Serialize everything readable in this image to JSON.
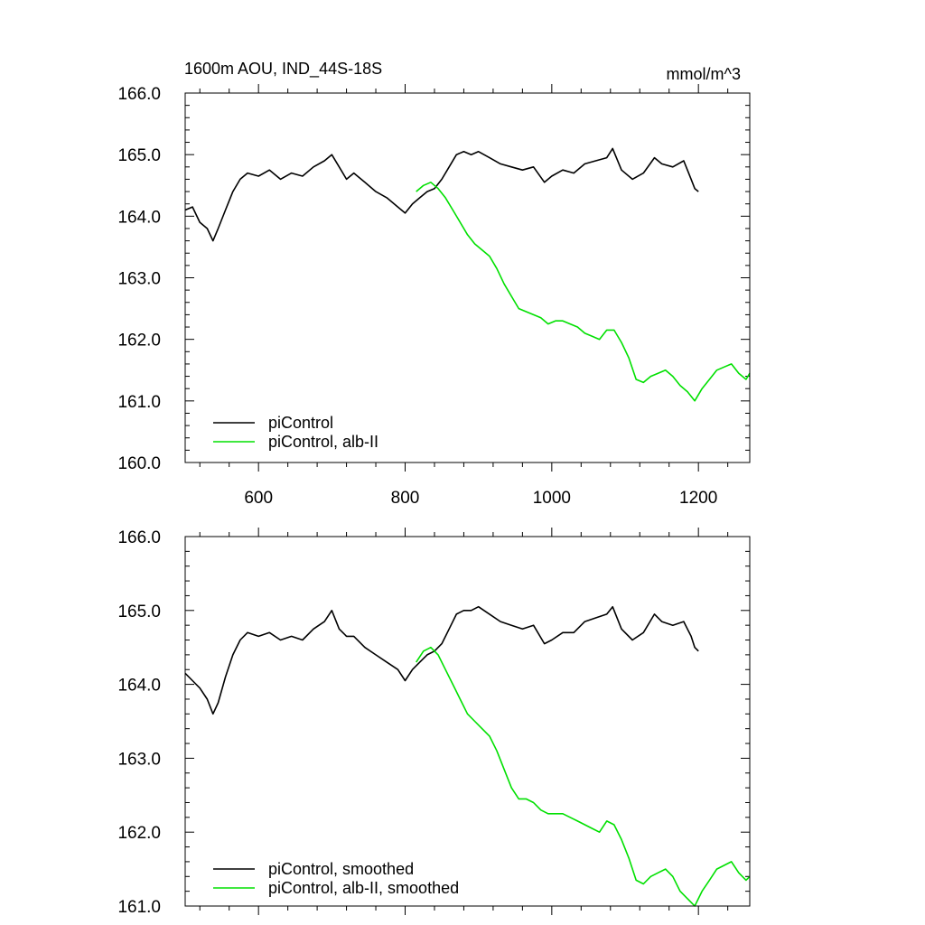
{
  "chart_data": [
    {
      "type": "line",
      "title": "1600m AOU, IND_44S-18S",
      "units": "mmol/m^3",
      "xlim": [
        500,
        1270
      ],
      "ylim": [
        160.0,
        166.0
      ],
      "x_ticks": [
        600,
        800,
        1000,
        1200
      ],
      "x_tick_labels": [
        "600",
        "800",
        "1000",
        "1200"
      ],
      "y_ticks": [
        160.0,
        161.0,
        162.0,
        163.0,
        164.0,
        165.0,
        166.0
      ],
      "y_tick_labels": [
        "160.0",
        "161.0",
        "162.0",
        "163.0",
        "164.0",
        "165.0",
        "166.0"
      ],
      "grid": false,
      "legend_position": "bottom-left",
      "series": [
        {
          "name": "piControl",
          "color": "#000000",
          "x": [
            500,
            510,
            520,
            530,
            538,
            545,
            555,
            565,
            575,
            585,
            600,
            615,
            630,
            645,
            660,
            675,
            690,
            700,
            710,
            720,
            730,
            745,
            760,
            775,
            790,
            800,
            810,
            820,
            830,
            840,
            850,
            860,
            870,
            880,
            890,
            900,
            915,
            930,
            945,
            960,
            975,
            990,
            1000,
            1015,
            1030,
            1045,
            1060,
            1075,
            1083,
            1095,
            1110,
            1125,
            1140,
            1150,
            1165,
            1180,
            1190,
            1195,
            1200
          ],
          "y": [
            164.1,
            164.15,
            163.9,
            163.8,
            163.6,
            163.8,
            164.1,
            164.4,
            164.6,
            164.7,
            164.65,
            164.75,
            164.6,
            164.7,
            164.65,
            164.8,
            164.9,
            165.0,
            164.8,
            164.6,
            164.7,
            164.55,
            164.4,
            164.3,
            164.15,
            164.05,
            164.2,
            164.3,
            164.4,
            164.45,
            164.6,
            164.8,
            165.0,
            165.05,
            165.0,
            165.05,
            164.95,
            164.85,
            164.8,
            164.75,
            164.8,
            164.55,
            164.65,
            164.75,
            164.7,
            164.85,
            164.9,
            164.95,
            165.1,
            164.75,
            164.6,
            164.7,
            164.95,
            164.85,
            164.8,
            164.9,
            164.6,
            164.45,
            164.4
          ]
        },
        {
          "name": "piControl, alb-II",
          "color": "#00e000",
          "x": [
            815,
            825,
            835,
            845,
            855,
            865,
            875,
            885,
            895,
            905,
            915,
            925,
            935,
            945,
            955,
            965,
            975,
            985,
            995,
            1005,
            1015,
            1025,
            1035,
            1045,
            1055,
            1065,
            1075,
            1085,
            1095,
            1105,
            1115,
            1125,
            1135,
            1145,
            1155,
            1165,
            1175,
            1185,
            1195,
            1205,
            1215,
            1225,
            1235,
            1245,
            1255,
            1265,
            1270
          ],
          "y": [
            164.4,
            164.5,
            164.55,
            164.45,
            164.3,
            164.1,
            163.9,
            163.7,
            163.55,
            163.45,
            163.35,
            163.15,
            162.9,
            162.7,
            162.5,
            162.45,
            162.4,
            162.35,
            162.25,
            162.3,
            162.3,
            162.25,
            162.2,
            162.1,
            162.05,
            162.0,
            162.15,
            162.15,
            161.95,
            161.7,
            161.35,
            161.3,
            161.4,
            161.45,
            161.5,
            161.4,
            161.25,
            161.15,
            161.0,
            161.2,
            161.35,
            161.5,
            161.55,
            161.6,
            161.45,
            161.35,
            161.45
          ]
        }
      ]
    },
    {
      "type": "line",
      "xlim": [
        500,
        1270
      ],
      "ylim": [
        161.0,
        166.0
      ],
      "x_ticks": [
        600,
        800,
        1000,
        1200
      ],
      "y_ticks": [
        161.0,
        162.0,
        163.0,
        164.0,
        165.0,
        166.0
      ],
      "y_tick_labels": [
        "161.0",
        "162.0",
        "163.0",
        "164.0",
        "165.0",
        "166.0"
      ],
      "grid": false,
      "legend_position": "bottom-left",
      "series": [
        {
          "name": "piControl, smoothed",
          "color": "#000000",
          "x": [
            500,
            510,
            520,
            530,
            538,
            545,
            555,
            565,
            575,
            585,
            600,
            615,
            630,
            645,
            660,
            675,
            690,
            700,
            710,
            720,
            730,
            745,
            760,
            775,
            790,
            800,
            810,
            820,
            830,
            840,
            850,
            860,
            870,
            880,
            890,
            900,
            915,
            930,
            945,
            960,
            975,
            990,
            1000,
            1015,
            1030,
            1045,
            1060,
            1075,
            1083,
            1095,
            1110,
            1125,
            1140,
            1150,
            1165,
            1180,
            1190,
            1195,
            1200
          ],
          "y": [
            164.15,
            164.05,
            163.95,
            163.8,
            163.6,
            163.75,
            164.1,
            164.4,
            164.6,
            164.7,
            164.65,
            164.7,
            164.6,
            164.65,
            164.6,
            164.75,
            164.85,
            165.0,
            164.75,
            164.65,
            164.65,
            164.5,
            164.4,
            164.3,
            164.2,
            164.05,
            164.2,
            164.3,
            164.4,
            164.45,
            164.55,
            164.75,
            164.95,
            165.0,
            165.0,
            165.05,
            164.95,
            164.85,
            164.8,
            164.75,
            164.8,
            164.55,
            164.6,
            164.7,
            164.7,
            164.85,
            164.9,
            164.95,
            165.05,
            164.75,
            164.6,
            164.7,
            164.95,
            164.85,
            164.8,
            164.85,
            164.65,
            164.5,
            164.45
          ]
        },
        {
          "name": "piControl, alb-II, smoothed",
          "color": "#00e000",
          "x": [
            815,
            825,
            835,
            845,
            855,
            865,
            875,
            885,
            895,
            905,
            915,
            925,
            935,
            945,
            955,
            965,
            975,
            985,
            995,
            1005,
            1015,
            1025,
            1035,
            1045,
            1055,
            1065,
            1075,
            1085,
            1095,
            1105,
            1115,
            1125,
            1135,
            1145,
            1155,
            1165,
            1175,
            1185,
            1195,
            1205,
            1215,
            1225,
            1235,
            1245,
            1255,
            1265,
            1270
          ],
          "y": [
            164.3,
            164.45,
            164.5,
            164.4,
            164.2,
            164.0,
            163.8,
            163.6,
            163.5,
            163.4,
            163.3,
            163.1,
            162.85,
            162.6,
            162.45,
            162.45,
            162.4,
            162.3,
            162.25,
            162.25,
            162.25,
            162.2,
            162.15,
            162.1,
            162.05,
            162.0,
            162.15,
            162.1,
            161.9,
            161.65,
            161.35,
            161.3,
            161.4,
            161.45,
            161.5,
            161.4,
            161.2,
            161.1,
            161.0,
            161.2,
            161.35,
            161.5,
            161.55,
            161.6,
            161.45,
            161.35,
            161.4
          ]
        }
      ]
    }
  ]
}
